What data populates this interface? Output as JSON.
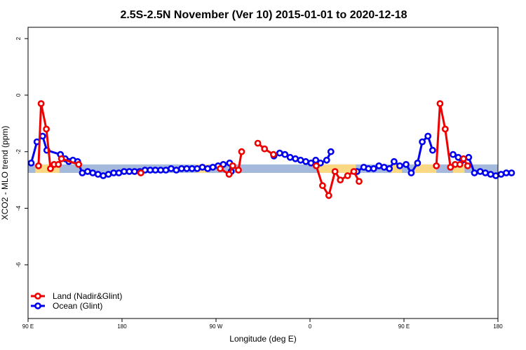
{
  "chart_data": {
    "type": "line",
    "title": "2.5S-2.5N November (Ver 10)   2015-01-01 to 2020-12-18",
    "xlabel": "Longitude (deg E)",
    "ylabel": "XCO2 - MLO trend (ppm)",
    "x_tick_values": [
      90,
      180,
      270,
      360,
      450,
      540
    ],
    "x_tick_labels": [
      "90 E",
      "180",
      "90 W",
      "0",
      "90 E",
      "180"
    ],
    "xlim": [
      90,
      540
    ],
    "y_ticks": [
      2,
      0,
      -2,
      -4,
      -6
    ],
    "y_tick_labels": [
      "2",
      "0",
      "-2",
      "-4",
      "-6"
    ],
    "ylim": [
      -7.9,
      2.4
    ],
    "legend": {
      "placement": "bottom-left"
    },
    "background_band": {
      "y_range": [
        -2.75,
        -2.45
      ],
      "ocean_color": "#a4b9dc",
      "land_color": "#fbd883"
    },
    "land_segments": [
      [
        97,
        120
      ],
      [
        251,
        263
      ],
      [
        368,
        376
      ],
      [
        371,
        404
      ],
      [
        438,
        448
      ],
      [
        460,
        481
      ],
      [
        497,
        508
      ]
    ],
    "series": [
      {
        "name": "Land (Nadir&Glint)",
        "color": "#ee0000",
        "segments": [
          [
            [
              100.0,
              -2.5
            ],
            [
              102.5,
              -0.3
            ],
            [
              107.5,
              -1.2
            ],
            [
              111.5,
              -2.6
            ],
            [
              115.0,
              -2.45
            ],
            [
              119.0,
              -2.45
            ],
            [
              122.0,
              -2.25
            ],
            [
              138.5,
              -2.45
            ]
          ],
          [
            [
              198.0,
              -2.75
            ]
          ],
          [
            [
              274.0,
              -2.6
            ],
            [
              282.5,
              -2.8
            ],
            [
              286.0,
              -2.5
            ],
            [
              291.5,
              -2.65
            ],
            [
              294.5,
              -2.0
            ]
          ],
          [
            [
              310.0,
              -1.7
            ],
            [
              316.5,
              -1.9
            ],
            [
              325.0,
              -2.1
            ]
          ],
          [
            [
              366.0,
              -2.5
            ],
            [
              372.0,
              -3.2
            ],
            [
              378.0,
              -3.55
            ],
            [
              384.0,
              -2.7
            ],
            [
              389.0,
              -3.0
            ],
            [
              396.0,
              -2.85
            ],
            [
              402.0,
              -2.7
            ],
            [
              407.0,
              -3.05
            ]
          ],
          [
            [
              481.0,
              -2.5
            ],
            [
              484.5,
              -0.3
            ],
            [
              489.5,
              -1.2
            ],
            [
              494.5,
              -2.55
            ],
            [
              499.0,
              -2.45
            ],
            [
              503.5,
              -2.45
            ],
            [
              507.0,
              -2.25
            ],
            [
              511.0,
              -2.5
            ]
          ]
        ]
      },
      {
        "name": "Ocean (Glint)",
        "color": "#0000ee",
        "segments": [
          [
            [
              93.0,
              -2.4
            ],
            [
              98.5,
              -1.65
            ],
            [
              104.0,
              -1.45
            ],
            [
              108.0,
              -1.95
            ],
            [
              121.0,
              -2.1
            ],
            [
              125.5,
              -2.25
            ],
            [
              129.0,
              -2.35
            ],
            [
              133.0,
              -2.3
            ],
            [
              137.5,
              -2.35
            ],
            [
              142.0,
              -2.75
            ],
            [
              147.0,
              -2.7
            ],
            [
              152.0,
              -2.75
            ],
            [
              157.0,
              -2.8
            ],
            [
              162.0,
              -2.85
            ],
            [
              167.0,
              -2.8
            ],
            [
              172.0,
              -2.75
            ],
            [
              177.0,
              -2.75
            ],
            [
              182.0,
              -2.7
            ],
            [
              187.0,
              -2.7
            ],
            [
              192.0,
              -2.7
            ],
            [
              197.0,
              -2.7
            ],
            [
              202.0,
              -2.65
            ],
            [
              207.0,
              -2.65
            ],
            [
              212.0,
              -2.65
            ],
            [
              217.0,
              -2.65
            ],
            [
              222.0,
              -2.65
            ],
            [
              227.0,
              -2.6
            ],
            [
              232.0,
              -2.65
            ],
            [
              237.0,
              -2.6
            ],
            [
              242.0,
              -2.6
            ],
            [
              247.0,
              -2.6
            ],
            [
              252.0,
              -2.6
            ],
            [
              257.0,
              -2.55
            ],
            [
              262.0,
              -2.6
            ],
            [
              267.0,
              -2.55
            ],
            [
              272.0,
              -2.5
            ],
            [
              277.0,
              -2.45
            ],
            [
              283.0,
              -2.4
            ],
            [
              284.5,
              -2.7
            ]
          ],
          [
            [
              325.5,
              -2.15
            ],
            [
              331.0,
              -2.05
            ],
            [
              336.0,
              -2.1
            ],
            [
              341.0,
              -2.2
            ],
            [
              346.0,
              -2.25
            ],
            [
              351.0,
              -2.3
            ],
            [
              356.0,
              -2.35
            ],
            [
              361.0,
              -2.4
            ],
            [
              365.5,
              -2.3
            ],
            [
              370.0,
              -2.4
            ],
            [
              376.0,
              -2.3
            ],
            [
              380.0,
              -2.0
            ]
          ],
          [
            [
              405.0,
              -2.7
            ],
            [
              411.5,
              -2.55
            ],
            [
              416.0,
              -2.6
            ],
            [
              421.0,
              -2.6
            ],
            [
              426.0,
              -2.5
            ],
            [
              431.0,
              -2.55
            ],
            [
              436.0,
              -2.6
            ],
            [
              440.5,
              -2.35
            ],
            [
              446.0,
              -2.5
            ],
            [
              452.0,
              -2.45
            ],
            [
              457.0,
              -2.75
            ],
            [
              463.0,
              -2.4
            ],
            [
              467.5,
              -1.65
            ],
            [
              473.0,
              -1.45
            ],
            [
              477.5,
              -1.95
            ]
          ],
          [
            [
              497.0,
              -2.1
            ],
            [
              502.0,
              -2.2
            ],
            [
              506.0,
              -2.3
            ],
            [
              512.0,
              -2.2
            ],
            [
              517.5,
              -2.75
            ],
            [
              523.0,
              -2.7
            ],
            [
              528.0,
              -2.75
            ],
            [
              533.0,
              -2.8
            ],
            [
              538.0,
              -2.85
            ],
            [
              543.0,
              -2.8
            ],
            [
              548.0,
              -2.75
            ],
            [
              553.0,
              -2.75
            ]
          ]
        ]
      }
    ]
  }
}
